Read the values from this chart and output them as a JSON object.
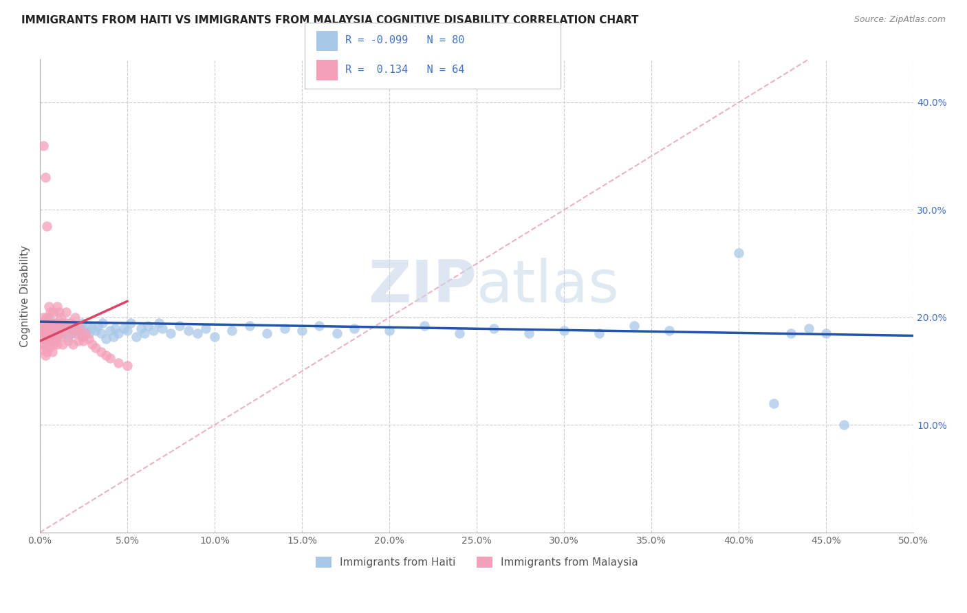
{
  "title": "IMMIGRANTS FROM HAITI VS IMMIGRANTS FROM MALAYSIA COGNITIVE DISABILITY CORRELATION CHART",
  "source_text": "Source: ZipAtlas.com",
  "ylabel": "Cognitive Disability",
  "xlim": [
    0.0,
    0.5
  ],
  "ylim": [
    0.0,
    0.44
  ],
  "xticks": [
    0.0,
    0.05,
    0.1,
    0.15,
    0.2,
    0.25,
    0.3,
    0.35,
    0.4,
    0.45,
    0.5
  ],
  "yticks_right": [
    0.1,
    0.2,
    0.3,
    0.4
  ],
  "haiti_color": "#a8c8e8",
  "malaysia_color": "#f4a0b8",
  "haiti_line_color": "#2255aa",
  "malaysia_line_color": "#dd4466",
  "ref_line_color": "#e8a0b0",
  "legend_haiti_R": "-0.099",
  "legend_haiti_N": "80",
  "legend_malaysia_R": "0.134",
  "legend_malaysia_N": "64",
  "legend_text_color": "#4472c4",
  "watermark_zip": "ZIP",
  "watermark_atlas": "atlas",
  "haiti_scatter_x": [
    0.002,
    0.003,
    0.004,
    0.005,
    0.005,
    0.006,
    0.007,
    0.008,
    0.008,
    0.009,
    0.01,
    0.01,
    0.011,
    0.012,
    0.013,
    0.014,
    0.015,
    0.015,
    0.016,
    0.017,
    0.018,
    0.019,
    0.02,
    0.021,
    0.022,
    0.023,
    0.024,
    0.025,
    0.026,
    0.027,
    0.028,
    0.03,
    0.032,
    0.033,
    0.035,
    0.036,
    0.038,
    0.04,
    0.042,
    0.043,
    0.045,
    0.048,
    0.05,
    0.052,
    0.055,
    0.058,
    0.06,
    0.062,
    0.065,
    0.068,
    0.07,
    0.075,
    0.08,
    0.085,
    0.09,
    0.095,
    0.1,
    0.11,
    0.12,
    0.13,
    0.14,
    0.15,
    0.16,
    0.17,
    0.18,
    0.2,
    0.22,
    0.24,
    0.26,
    0.28,
    0.3,
    0.32,
    0.34,
    0.36,
    0.4,
    0.42,
    0.43,
    0.44,
    0.45,
    0.46
  ],
  "haiti_scatter_y": [
    0.19,
    0.185,
    0.195,
    0.18,
    0.2,
    0.188,
    0.192,
    0.178,
    0.185,
    0.195,
    0.19,
    0.182,
    0.188,
    0.195,
    0.185,
    0.192,
    0.188,
    0.195,
    0.182,
    0.19,
    0.195,
    0.185,
    0.188,
    0.192,
    0.185,
    0.19,
    0.195,
    0.182,
    0.188,
    0.192,
    0.185,
    0.19,
    0.188,
    0.192,
    0.185,
    0.195,
    0.18,
    0.188,
    0.182,
    0.19,
    0.185,
    0.19,
    0.188,
    0.195,
    0.182,
    0.19,
    0.185,
    0.192,
    0.188,
    0.195,
    0.19,
    0.185,
    0.192,
    0.188,
    0.185,
    0.19,
    0.182,
    0.188,
    0.192,
    0.185,
    0.19,
    0.188,
    0.192,
    0.185,
    0.19,
    0.188,
    0.192,
    0.185,
    0.19,
    0.185,
    0.188,
    0.185,
    0.192,
    0.188,
    0.26,
    0.12,
    0.185,
    0.19,
    0.185,
    0.1
  ],
  "malaysia_scatter_x": [
    0.001,
    0.001,
    0.001,
    0.002,
    0.002,
    0.002,
    0.002,
    0.003,
    0.003,
    0.003,
    0.003,
    0.004,
    0.004,
    0.004,
    0.004,
    0.005,
    0.005,
    0.005,
    0.005,
    0.006,
    0.006,
    0.006,
    0.007,
    0.007,
    0.007,
    0.008,
    0.008,
    0.008,
    0.009,
    0.009,
    0.01,
    0.01,
    0.01,
    0.011,
    0.011,
    0.012,
    0.012,
    0.013,
    0.013,
    0.014,
    0.015,
    0.015,
    0.016,
    0.017,
    0.018,
    0.019,
    0.02,
    0.021,
    0.022,
    0.023,
    0.024,
    0.025,
    0.026,
    0.028,
    0.03,
    0.032,
    0.035,
    0.038,
    0.04,
    0.045,
    0.05,
    0.002,
    0.003,
    0.004
  ],
  "malaysia_scatter_y": [
    0.195,
    0.185,
    0.175,
    0.2,
    0.19,
    0.18,
    0.17,
    0.195,
    0.185,
    0.175,
    0.165,
    0.2,
    0.19,
    0.18,
    0.168,
    0.21,
    0.195,
    0.185,
    0.172,
    0.205,
    0.192,
    0.178,
    0.195,
    0.182,
    0.168,
    0.205,
    0.19,
    0.175,
    0.195,
    0.18,
    0.21,
    0.192,
    0.175,
    0.205,
    0.185,
    0.2,
    0.182,
    0.195,
    0.175,
    0.192,
    0.205,
    0.188,
    0.178,
    0.195,
    0.185,
    0.175,
    0.2,
    0.188,
    0.178,
    0.19,
    0.182,
    0.178,
    0.185,
    0.18,
    0.175,
    0.172,
    0.168,
    0.165,
    0.162,
    0.158,
    0.155,
    0.36,
    0.33,
    0.285
  ]
}
